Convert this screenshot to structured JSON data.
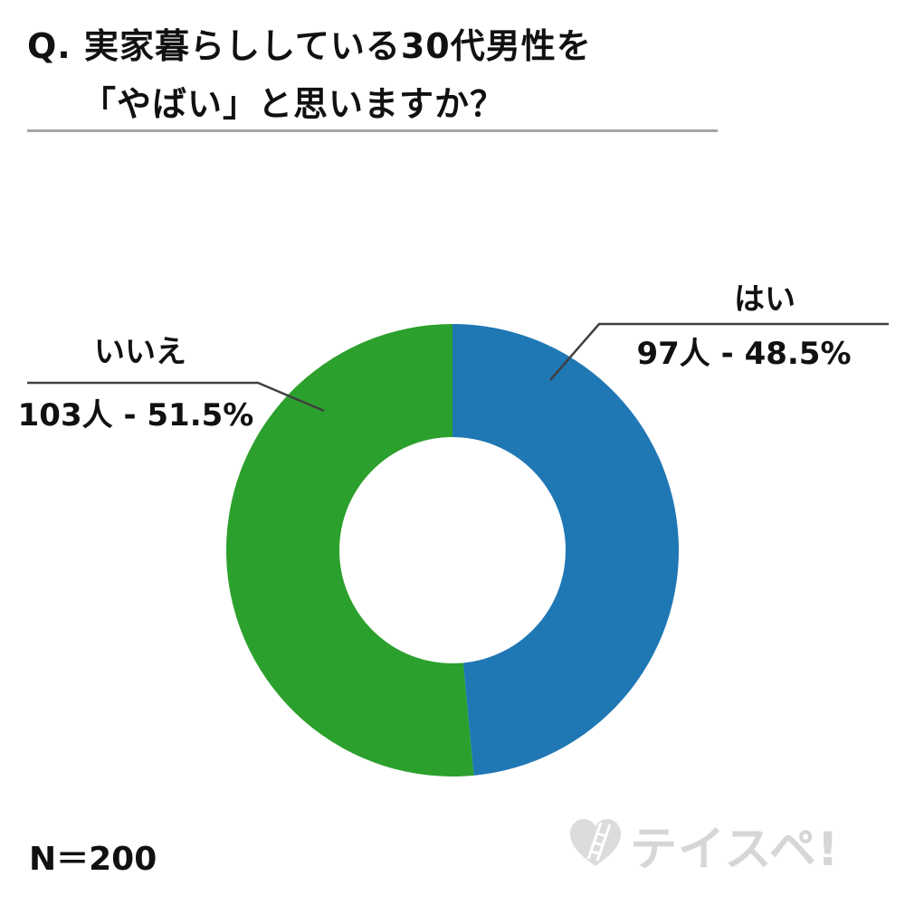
{
  "title": {
    "line1": "Q. 実家暮らししている30代男性を",
    "line2": "「やばい」と思いますか？"
  },
  "chart_data": {
    "type": "pie",
    "variant": "donut",
    "total_label": "N＝200",
    "total": 200,
    "slices": [
      {
        "label": "はい",
        "count": 97,
        "percent": 48.5,
        "value_text": "97人 - 48.5%",
        "color": "#1f77b4"
      },
      {
        "label": "いいえ",
        "count": 103,
        "percent": 51.5,
        "value_text": "103人 - 51.5%",
        "color": "#2ca02c"
      }
    ],
    "start": "12 o'clock",
    "direction": "clockwise"
  },
  "watermark": {
    "text": "テイスペ!",
    "icon": "heart-ladder-icon"
  }
}
